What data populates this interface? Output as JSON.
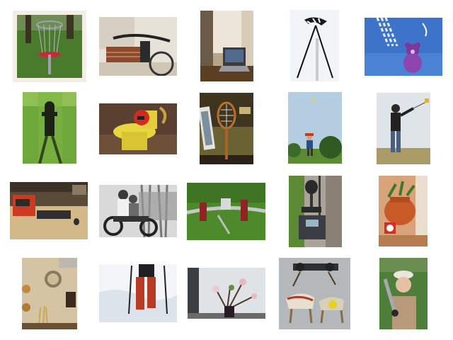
{
  "gallery": {
    "thumbnails": [
      {
        "name": "disc-golf-basket-photo"
      },
      {
        "name": "bicycle-handlebars-indoors-photo"
      },
      {
        "name": "laptop-on-desk-photo"
      },
      {
        "name": "kite-on-white-sky-photo"
      },
      {
        "name": "teddy-bear-kite-photo"
      },
      {
        "name": "fire-hydrant-on-grass-photo"
      },
      {
        "name": "toilet-sculpture-photo"
      },
      {
        "name": "tennis-racket-on-couch-photo"
      },
      {
        "name": "child-flying-kite-photo"
      },
      {
        "name": "man-flying-kite-photo"
      },
      {
        "name": "scroll-saw-and-keyboard-photo"
      },
      {
        "name": "vintage-women-on-motorcycle-photo"
      },
      {
        "name": "bicycle-on-grass-photo"
      },
      {
        "name": "scooter-on-sidewalk-photo"
      },
      {
        "name": "potted-plant-and-clock-photo"
      },
      {
        "name": "wall-clock-in-room-photo"
      },
      {
        "name": "skier-boots-in-snow-photo"
      },
      {
        "name": "flower-vase-branch-photo"
      },
      {
        "name": "wooden-toy-horses-photo"
      },
      {
        "name": "woman-with-baseball-bat-photo"
      }
    ]
  }
}
